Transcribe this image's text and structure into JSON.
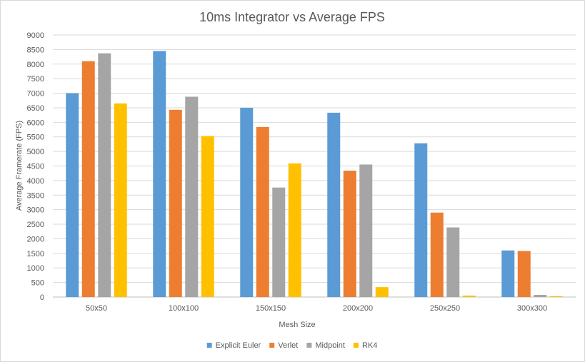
{
  "chart_data": {
    "type": "bar",
    "title": "10ms Integrator vs Average FPS",
    "xlabel": "Mesh Size",
    "ylabel": "Average Framerate (FPS)",
    "ylim": [
      0,
      9000
    ],
    "ytick_step": 500,
    "grid": true,
    "legend_position": "bottom",
    "categories": [
      "50x50",
      "100x100",
      "150x150",
      "200x200",
      "250x250",
      "300x300"
    ],
    "series": [
      {
        "name": "Explicit Euler",
        "color": "#5b9bd5",
        "values": [
          7000,
          8450,
          6500,
          6330,
          5280,
          1600
        ]
      },
      {
        "name": "Verlet",
        "color": "#ed7d31",
        "values": [
          8100,
          6430,
          5840,
          4340,
          2900,
          1580
        ]
      },
      {
        "name": "Midpoint",
        "color": "#a5a5a5",
        "values": [
          8370,
          6880,
          3760,
          4550,
          2390,
          75
        ]
      },
      {
        "name": "RK4",
        "color": "#ffc000",
        "values": [
          6650,
          5530,
          4590,
          340,
          50,
          30
        ]
      }
    ]
  }
}
